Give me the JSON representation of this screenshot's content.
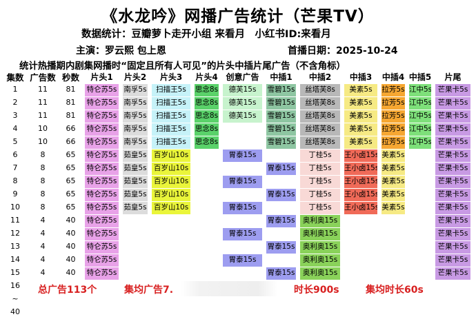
{
  "title": "《水龙吟》网播广告统计（芒果TV）",
  "stats_line": "数据统计：豆瓣萝卜走开小组 来看月　小红书ID:来看月",
  "cast_label": "主演：罗云熙 包上恩",
  "air_date_label": "首播日期：2025-10-24",
  "note": "统计热播期内剧集网播时“固定且所有人可见”的片头中插片尾广告（不含角标）",
  "headers": [
    "集数",
    "广告数",
    "秒数",
    "片头1",
    "片头2",
    "片头3",
    "片头4",
    "创意广告",
    "中插1",
    "中插2",
    "中插3",
    "中插4",
    "中插5",
    "片尾"
  ],
  "rows": [
    {
      "ep": "1",
      "count": "11",
      "secs": "81",
      "cells": [
        "特仑苏5s",
        "南孚5s",
        "扫描王5s",
        "思念8s",
        "德芙15s",
        "雪碧15s",
        "丝塔芙8s",
        "美素5s",
        "拉芳5s",
        "江中5s",
        "芒果卡5s"
      ]
    },
    {
      "ep": "2",
      "count": "11",
      "secs": "81",
      "cells": [
        "特仑苏5s",
        "南孚5s",
        "扫描王5s",
        "思念8s",
        "德芙15s",
        "雪碧15s",
        "丝塔芙8s",
        "美素5s",
        "拉芳5s",
        "江中5s",
        "芒果卡5s"
      ]
    },
    {
      "ep": "3",
      "count": "11",
      "secs": "81",
      "cells": [
        "特仑苏5s",
        "南孚5s",
        "扫描王5s",
        "思念8s",
        "德芙15s",
        "雪碧15s",
        "丝塔芙8s",
        "美素5s",
        "拉芳5s",
        "江中5s",
        "芒果卡5s"
      ]
    },
    {
      "ep": "4",
      "count": "10",
      "secs": "66",
      "cells": [
        "特仑苏5s",
        "南孚5s",
        "扫描王5s",
        "思念8s",
        "",
        "雪碧15s",
        "丝塔芙8s",
        "美素5s",
        "拉芳5s",
        "江中5s",
        "芒果卡5s"
      ]
    },
    {
      "ep": "5",
      "count": "10",
      "secs": "66",
      "cells": [
        "特仑苏5s",
        "南孚5s",
        "扫描王5s",
        "思念8s",
        "",
        "雪碧15s",
        "丝塔芙8s",
        "美素5s",
        "拉芳5s",
        "江中5s",
        "芒果卡5s"
      ]
    },
    {
      "ep": "6",
      "count": "8",
      "secs": "65",
      "cells": [
        "特仑苏5s",
        "茹皇5s",
        "百岁山10s",
        "",
        "胃泰15s",
        "",
        "丁桂5s",
        "王小卤15s",
        "美素5s",
        "",
        "芒果卡5s"
      ]
    },
    {
      "ep": "7",
      "count": "8",
      "secs": "65",
      "cells": [
        "特仑苏5s",
        "茹皇5s",
        "百岁山10s",
        "",
        "",
        "胃泰15s",
        "丁桂5s",
        "王小卤15s",
        "美素5s",
        "",
        "芒果卡5s"
      ]
    },
    {
      "ep": "8",
      "count": "8",
      "secs": "65",
      "cells": [
        "特仑苏5s",
        "茹皇5s",
        "百岁山10s",
        "",
        "胃泰15s",
        "",
        "丁桂5s",
        "王小卤15s",
        "美素5s",
        "",
        "芒果卡5s"
      ]
    },
    {
      "ep": "9",
      "count": "8",
      "secs": "65",
      "cells": [
        "特仑苏5s",
        "茹皇5s",
        "百岁山10s",
        "",
        "",
        "胃泰15s",
        "丁桂5s",
        "王小卤15s",
        "美素5s",
        "",
        "芒果卡5s"
      ]
    },
    {
      "ep": "10",
      "count": "8",
      "secs": "65",
      "cells": [
        "特仑苏5s",
        "茹皇5s",
        "百岁山10s",
        "",
        "胃泰15s",
        "",
        "丁桂5s",
        "王小卤15s",
        "美素5s",
        "",
        "芒果卡5s"
      ]
    },
    {
      "ep": "11",
      "count": "4",
      "secs": "40",
      "cells": [
        "特仑苏5s",
        "",
        "",
        "",
        "",
        "胃泰15s",
        "奥利奥15s",
        "",
        "",
        "",
        "芒果卡5s"
      ]
    },
    {
      "ep": "12",
      "count": "4",
      "secs": "40",
      "cells": [
        "特仑苏5s",
        "",
        "",
        "",
        "胃泰15s",
        "",
        "奥利奥15s",
        "",
        "",
        "",
        "芒果卡5s"
      ]
    },
    {
      "ep": "13",
      "count": "4",
      "secs": "40",
      "cells": [
        "特仑苏5s",
        "",
        "",
        "",
        "",
        "胃泰15s",
        "奥利奥15s",
        "",
        "",
        "",
        "芒果卡5s"
      ]
    },
    {
      "ep": "14",
      "count": "4",
      "secs": "40",
      "cells": [
        "特仑苏5s",
        "",
        "",
        "",
        "胃泰15s",
        "",
        "奥利奥15s",
        "",
        "",
        "",
        "芒果卡5s"
      ]
    },
    {
      "ep": "15",
      "count": "4",
      "secs": "40",
      "cells": [
        "特仑苏5s",
        "",
        "",
        "",
        "",
        "胃泰15s",
        "奥利奥15s",
        "",
        "",
        "",
        "芒果卡5s"
      ]
    },
    {
      "ep": "16",
      "count": "",
      "secs": "",
      "cells": [
        "",
        "",
        "",
        "",
        "",
        "",
        "",
        "",
        "",
        "",
        ""
      ]
    },
    {
      "ep": "~",
      "count": "",
      "secs": "",
      "cells": [
        "",
        "",
        "",
        "",
        "",
        "",
        "",
        "",
        "",
        "",
        ""
      ]
    },
    {
      "ep": "40",
      "count": "",
      "secs": "",
      "cells": [
        "",
        "",
        "",
        "",
        "",
        "",
        "",
        "",
        "",
        "",
        ""
      ]
    }
  ],
  "colors": {
    "特仑苏5s": "#e8a2e8",
    "南孚5s": "#dcdcdc",
    "茹皇5s": "#dcdcdc",
    "扫描王5s": "#c6f2f8",
    "百岁山10s": "#eaf53a",
    "思念8s": "#5ad26a",
    "德芙15s": "#c7f3cd",
    "雪碧15s": "#8ec6a2",
    "胃泰15s": "#9d9df0",
    "丝塔芙8s": "#b8b8b8",
    "丁桂5s": "#f8d9d6",
    "奥利奥15s": "#8ad25a",
    "美素5s": "#f6ea84",
    "王小卤15s": "#f06a58",
    "拉芳5s": "#f6a732",
    "江中5s": "#7ee07a",
    "芒果卡5s": "#c89ae4"
  },
  "footer": {
    "total": "总广告113个",
    "avg_ads": "集均广告7.",
    "duration": "时长900s",
    "avg_duration": "集均时长60s"
  }
}
